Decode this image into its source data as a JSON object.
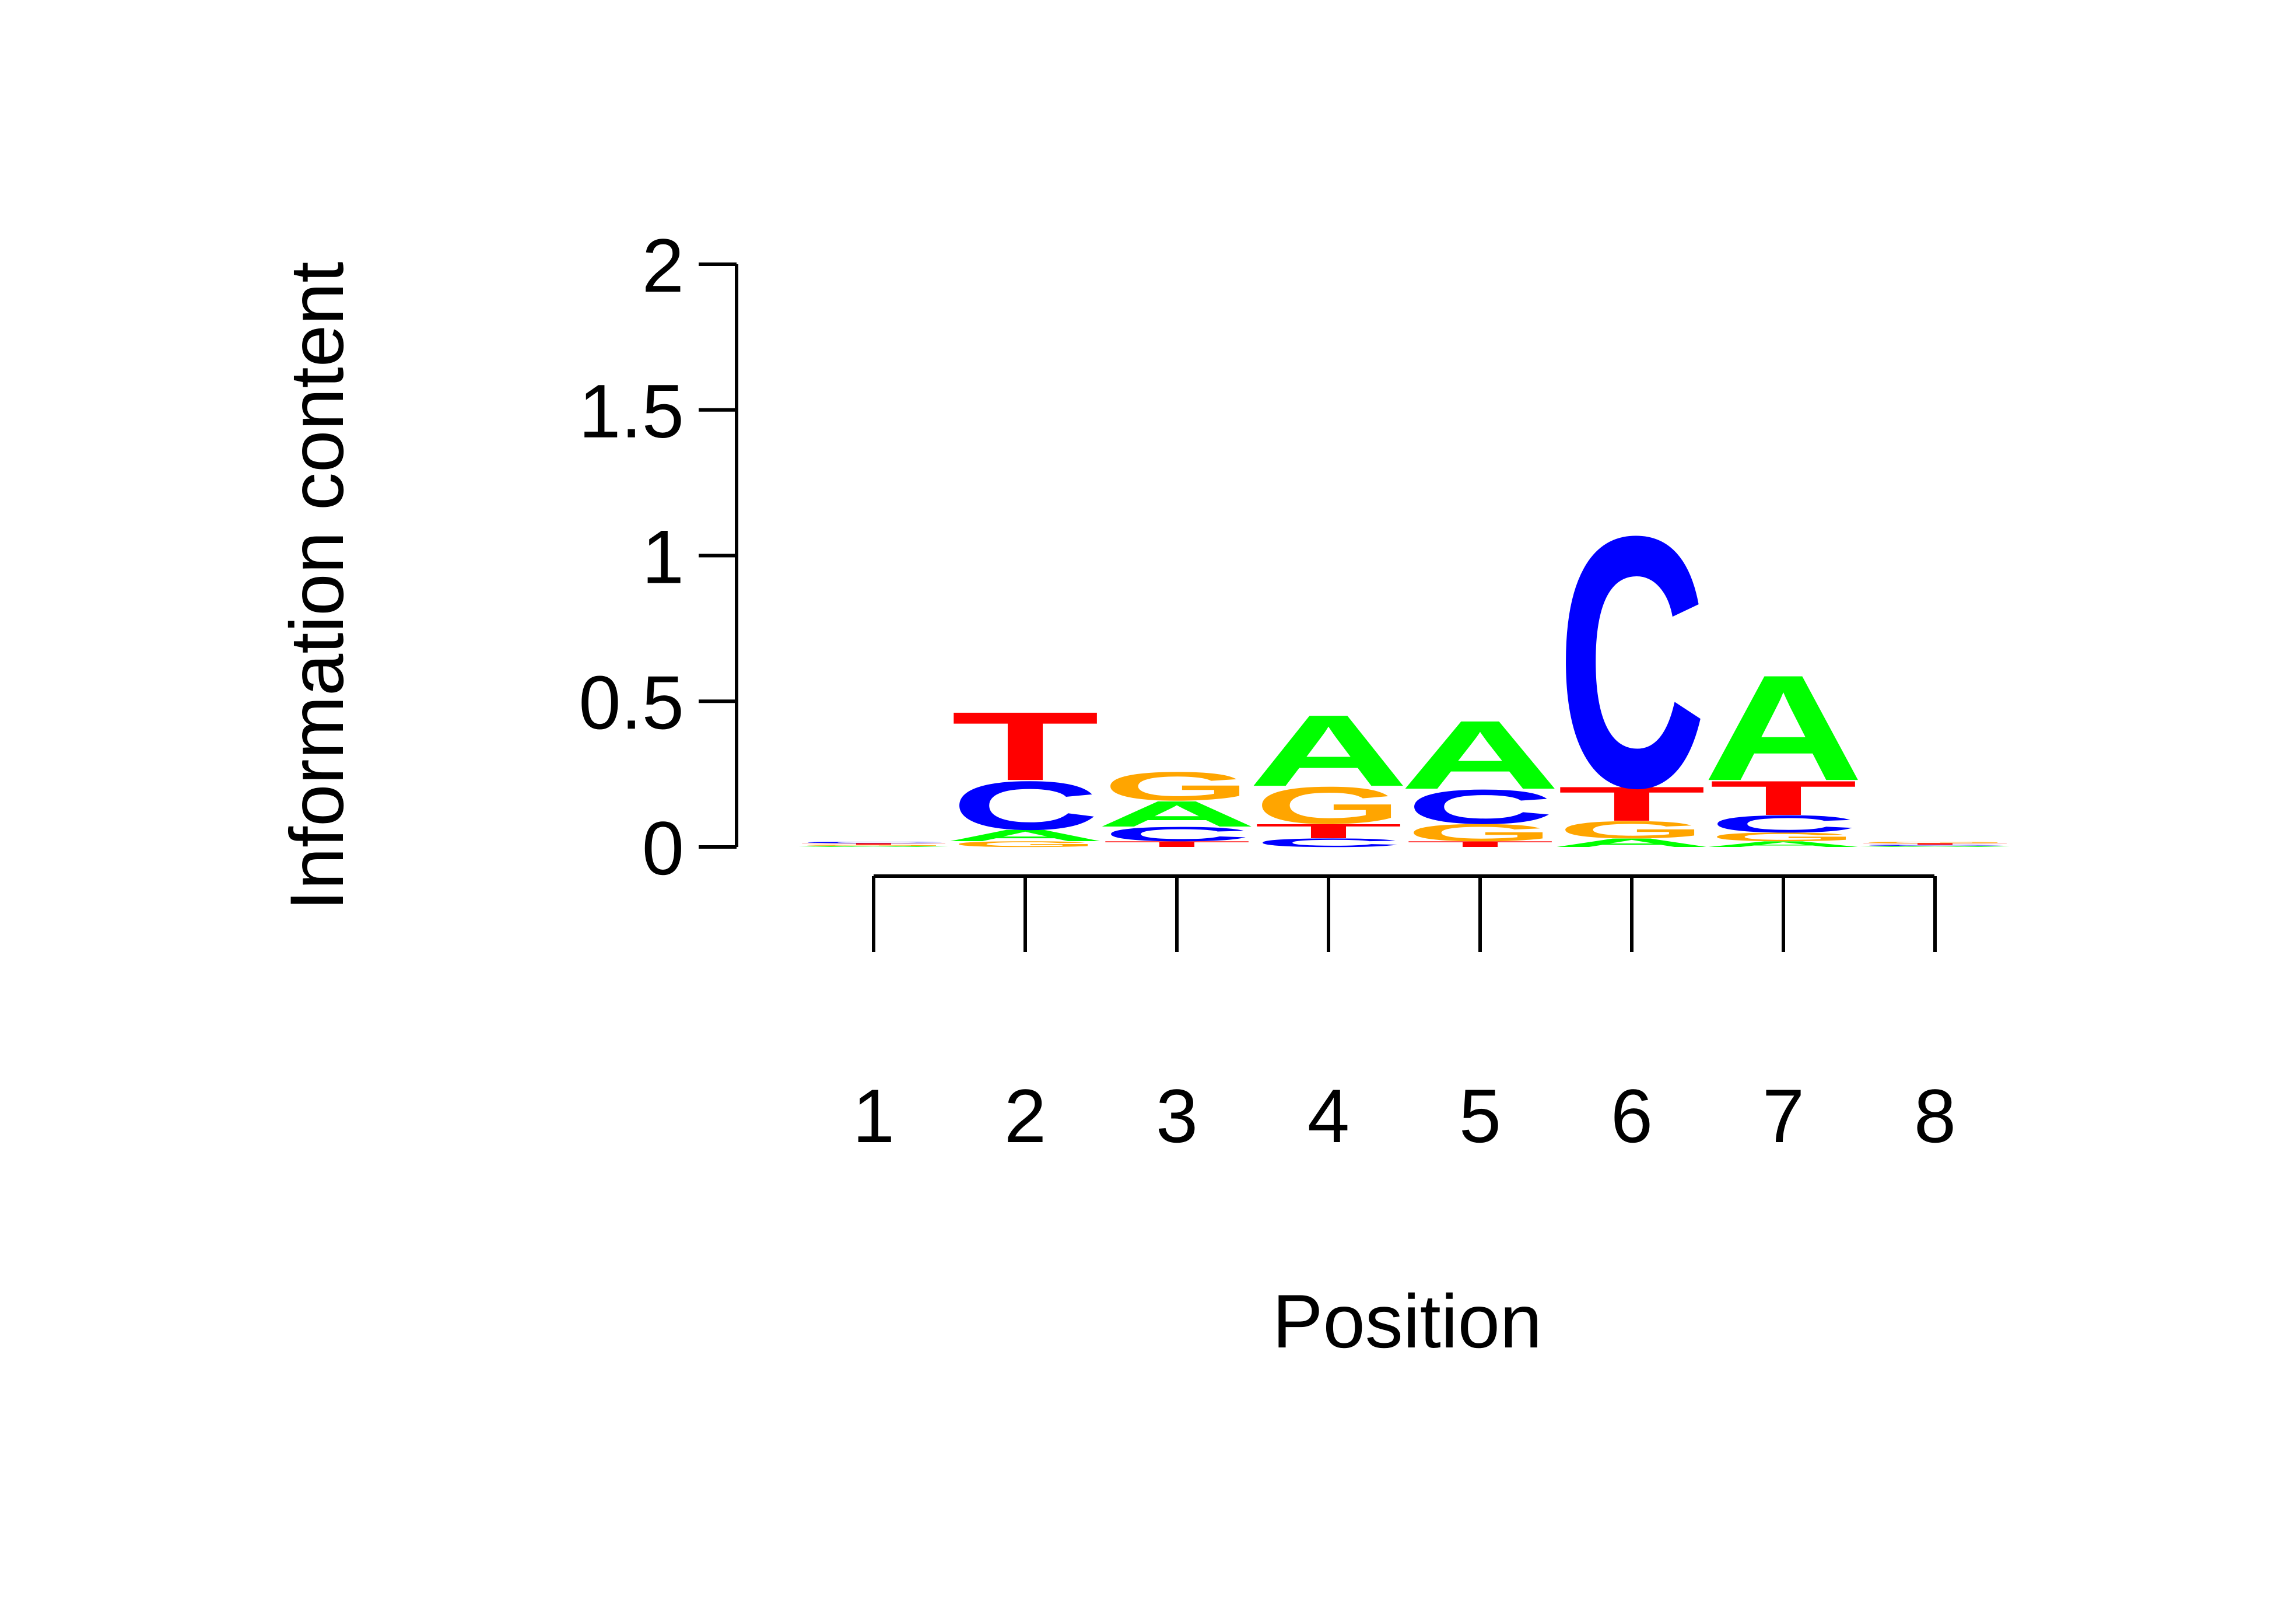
{
  "chart_data": {
    "type": "sequence-logo",
    "xlabel": "Position",
    "ylabel": "Information content",
    "ylim": [
      0,
      2
    ],
    "yticks": [
      "0",
      "0.5",
      "1",
      "1.5",
      "2"
    ],
    "yticks_values": [
      0,
      0.5,
      1,
      1.5,
      2
    ],
    "positions": [
      "1",
      "2",
      "3",
      "4",
      "5",
      "6",
      "7",
      "8"
    ],
    "colors": {
      "A": "#00ff00",
      "C": "#0000ff",
      "G": "#ffa500",
      "T": "#ff0000"
    },
    "stacks": [
      {
        "position": "1",
        "letters": [
          {
            "base": "A",
            "height": 0.004
          },
          {
            "base": "G",
            "height": 0.004
          },
          {
            "base": "T",
            "height": 0.005
          },
          {
            "base": "C",
            "height": 0.005
          }
        ]
      },
      {
        "position": "2",
        "letters": [
          {
            "base": "G",
            "height": 0.02
          },
          {
            "base": "A",
            "height": 0.04
          },
          {
            "base": "C",
            "height": 0.17
          },
          {
            "base": "T",
            "height": 0.24
          }
        ]
      },
      {
        "position": "3",
        "letters": [
          {
            "base": "T",
            "height": 0.02
          },
          {
            "base": "C",
            "height": 0.05
          },
          {
            "base": "A",
            "height": 0.09
          },
          {
            "base": "G",
            "height": 0.1
          }
        ]
      },
      {
        "position": "4",
        "letters": [
          {
            "base": "C",
            "height": 0.03
          },
          {
            "base": "T",
            "height": 0.05
          },
          {
            "base": "G",
            "height": 0.13
          },
          {
            "base": "A",
            "height": 0.25
          }
        ]
      },
      {
        "position": "5",
        "letters": [
          {
            "base": "T",
            "height": 0.02
          },
          {
            "base": "G",
            "height": 0.06
          },
          {
            "base": "C",
            "height": 0.12
          },
          {
            "base": "A",
            "height": 0.24
          }
        ]
      },
      {
        "position": "6",
        "letters": [
          {
            "base": "A",
            "height": 0.03
          },
          {
            "base": "G",
            "height": 0.06
          },
          {
            "base": "T",
            "height": 0.12
          },
          {
            "base": "C",
            "height": 0.88
          }
        ]
      },
      {
        "position": "7",
        "letters": [
          {
            "base": "A",
            "height": 0.02
          },
          {
            "base": "G",
            "height": 0.03
          },
          {
            "base": "C",
            "height": 0.06
          },
          {
            "base": "T",
            "height": 0.12
          },
          {
            "base": "A",
            "height": 0.37
          }
        ]
      },
      {
        "position": "8",
        "letters": [
          {
            "base": "A",
            "height": 0.004
          },
          {
            "base": "C",
            "height": 0.004
          },
          {
            "base": "T",
            "height": 0.005
          },
          {
            "base": "G",
            "height": 0.005
          }
        ]
      }
    ]
  }
}
